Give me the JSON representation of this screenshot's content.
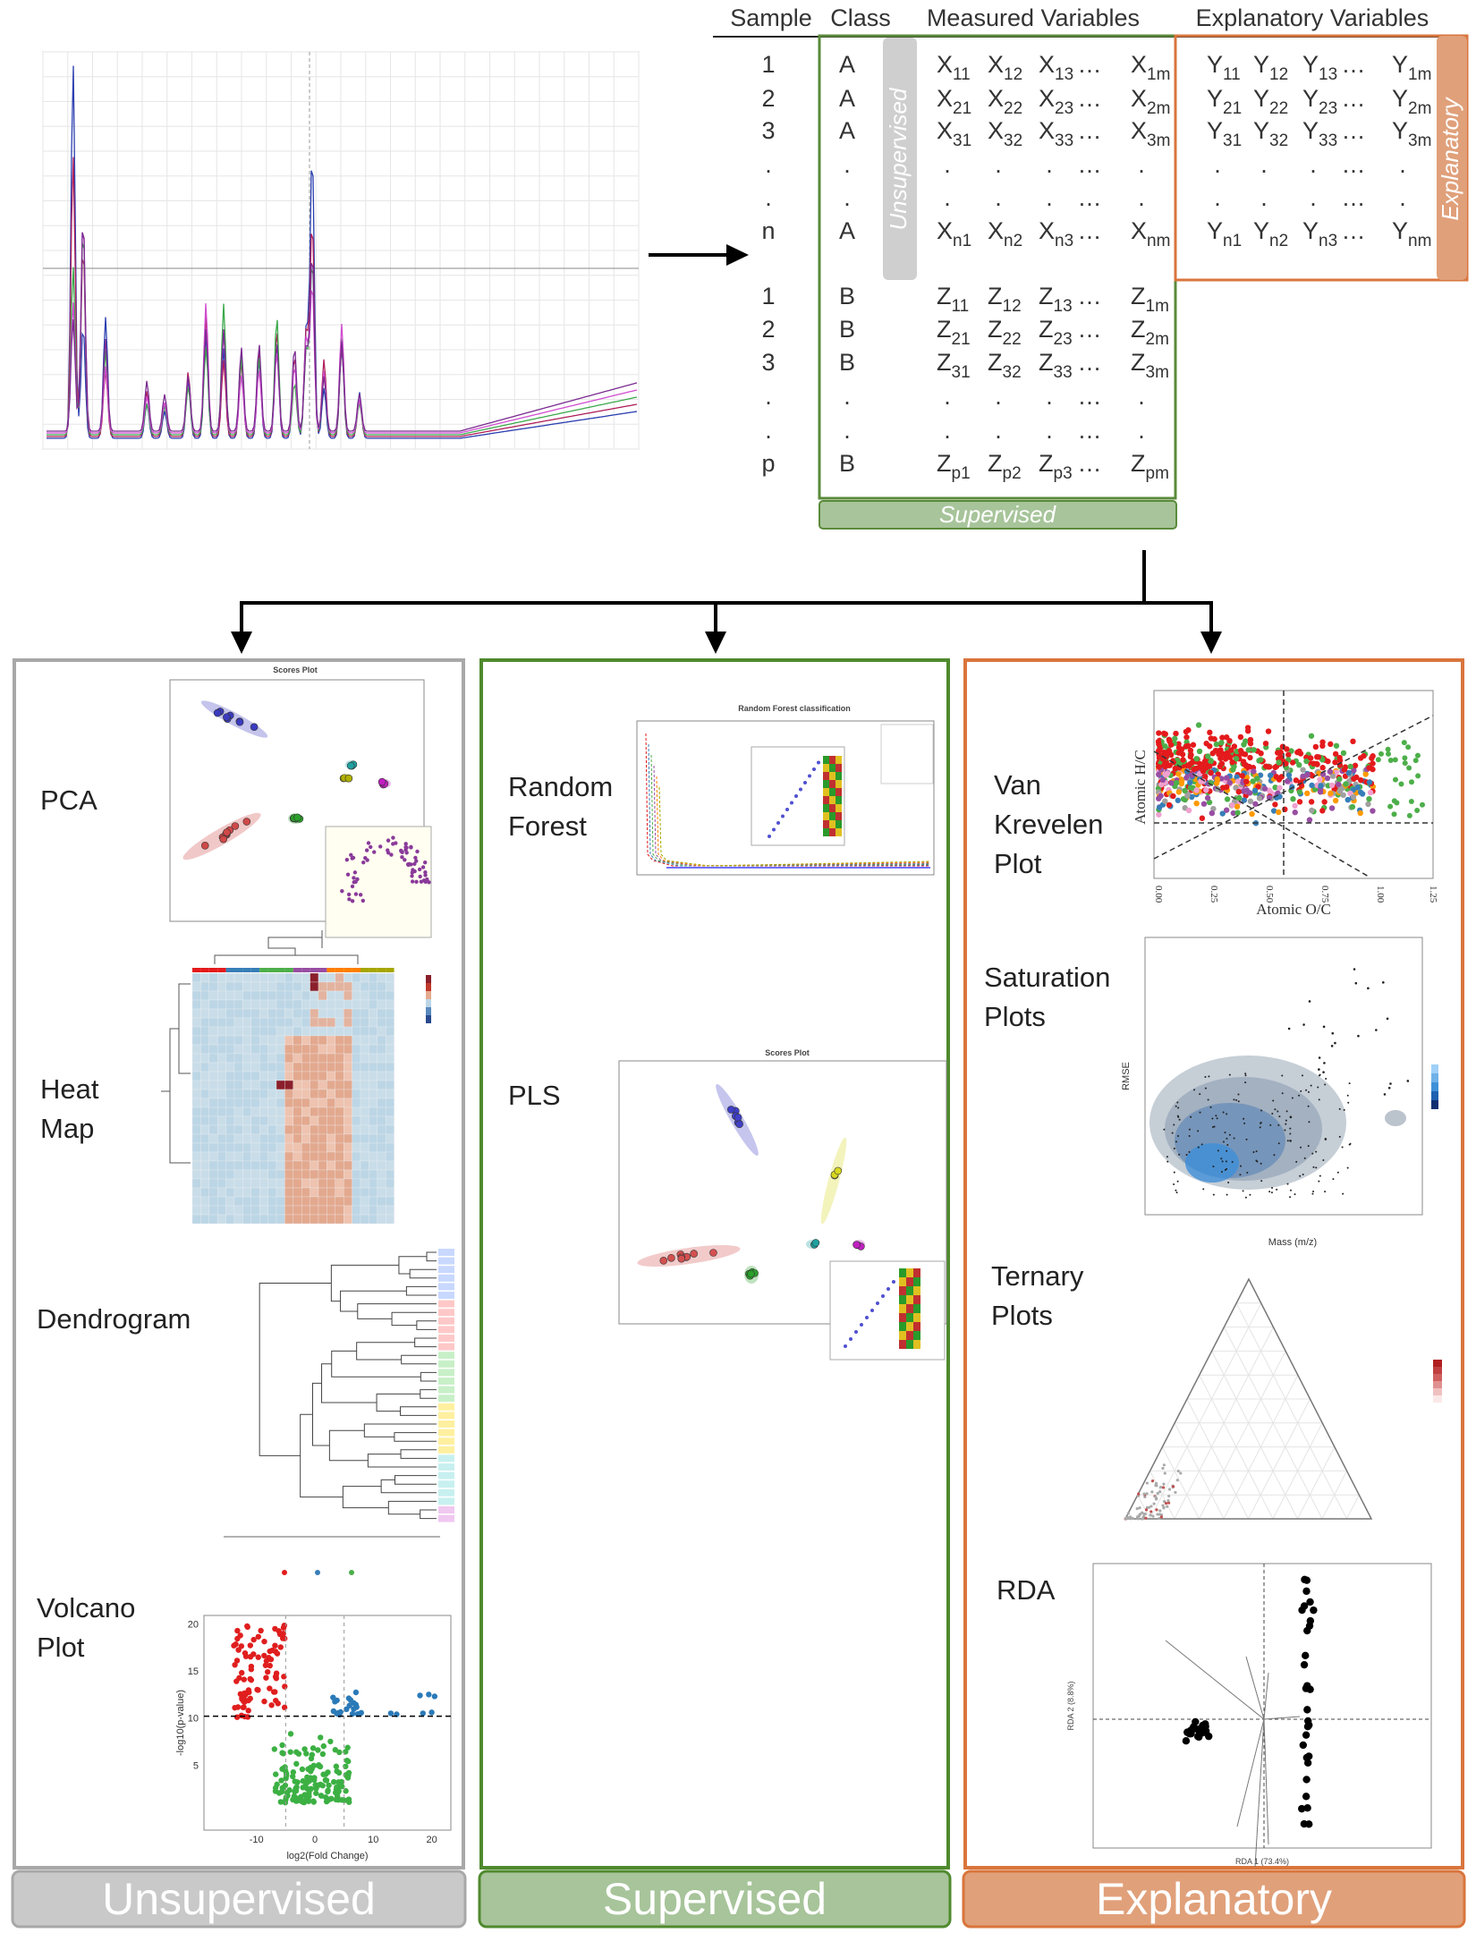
{
  "header_columns": [
    "Sample",
    "Class",
    "Measured Variables",
    "Explanatory Variables"
  ],
  "table_rows": [
    {
      "sample": "1",
      "class": "A",
      "measured": [
        {
          "base": "X",
          "sub": "11"
        },
        {
          "base": "X",
          "sub": "12"
        },
        {
          "base": "X",
          "sub": "13"
        },
        "…",
        {
          "base": "X",
          "sub": "1m"
        }
      ],
      "explanatory": [
        {
          "base": "Y",
          "sub": "11"
        },
        {
          "base": "Y",
          "sub": "12"
        },
        {
          "base": "Y",
          "sub": "13"
        },
        "…",
        {
          "base": "Y",
          "sub": "1m"
        }
      ]
    },
    {
      "sample": "2",
      "class": "A",
      "measured": [
        {
          "base": "X",
          "sub": "21"
        },
        {
          "base": "X",
          "sub": "22"
        },
        {
          "base": "X",
          "sub": "23"
        },
        "…",
        {
          "base": "X",
          "sub": "2m"
        }
      ],
      "explanatory": [
        {
          "base": "Y",
          "sub": "21"
        },
        {
          "base": "Y",
          "sub": "22"
        },
        {
          "base": "Y",
          "sub": "23"
        },
        "…",
        {
          "base": "Y",
          "sub": "2m"
        }
      ]
    },
    {
      "sample": "3",
      "class": "A",
      "measured": [
        {
          "base": "X",
          "sub": "31"
        },
        {
          "base": "X",
          "sub": "32"
        },
        {
          "base": "X",
          "sub": "33"
        },
        "…",
        {
          "base": "X",
          "sub": "3m"
        }
      ],
      "explanatory": [
        {
          "base": "Y",
          "sub": "31"
        },
        {
          "base": "Y",
          "sub": "32"
        },
        {
          "base": "Y",
          "sub": "33"
        },
        "…",
        {
          "base": "Y",
          "sub": "3m"
        }
      ]
    },
    {
      "sample": ".",
      "class": ".",
      "measured": [
        ".",
        ".",
        ".",
        "…",
        "."
      ],
      "explanatory": [
        ".",
        ".",
        ".",
        "…",
        "."
      ]
    },
    {
      "sample": ".",
      "class": ".",
      "measured": [
        ".",
        ".",
        ".",
        "…",
        "."
      ],
      "explanatory": [
        ".",
        ".",
        ".",
        "…",
        "."
      ]
    },
    {
      "sample": "n",
      "class": "A",
      "measured": [
        {
          "base": "X",
          "sub": "n1"
        },
        {
          "base": "X",
          "sub": "n2"
        },
        {
          "base": "X",
          "sub": "n3"
        },
        "…",
        {
          "base": "X",
          "sub": "nm"
        }
      ],
      "explanatory": [
        {
          "base": "Y",
          "sub": "n1"
        },
        {
          "base": "Y",
          "sub": "n2"
        },
        {
          "base": "Y",
          "sub": "n3"
        },
        "…",
        {
          "base": "Y",
          "sub": "nm"
        }
      ]
    },
    {
      "sample": "1",
      "class": "B",
      "measured": [
        {
          "base": "Z",
          "sub": "11"
        },
        {
          "base": "Z",
          "sub": "12"
        },
        {
          "base": "Z",
          "sub": "13"
        },
        "…",
        {
          "base": "Z",
          "sub": "1m"
        }
      ],
      "explanatory": []
    },
    {
      "sample": "2",
      "class": "B",
      "measured": [
        {
          "base": "Z",
          "sub": "21"
        },
        {
          "base": "Z",
          "sub": "22"
        },
        {
          "base": "Z",
          "sub": "23"
        },
        "…",
        {
          "base": "Z",
          "sub": "2m"
        }
      ],
      "explanatory": []
    },
    {
      "sample": "3",
      "class": "B",
      "measured": [
        {
          "base": "Z",
          "sub": "31"
        },
        {
          "base": "Z",
          "sub": "32"
        },
        {
          "base": "Z",
          "sub": "33"
        },
        "…",
        {
          "base": "Z",
          "sub": "3m"
        }
      ],
      "explanatory": []
    },
    {
      "sample": ".",
      "class": ".",
      "measured": [
        ".",
        ".",
        ".",
        "…",
        "."
      ],
      "explanatory": []
    },
    {
      "sample": ".",
      "class": ".",
      "measured": [
        ".",
        ".",
        ".",
        "…",
        "."
      ],
      "explanatory": []
    },
    {
      "sample": "p",
      "class": "B",
      "measured": [
        {
          "base": "Z",
          "sub": "p1"
        },
        {
          "base": "Z",
          "sub": "p2"
        },
        {
          "base": "Z",
          "sub": "p3"
        },
        "…",
        {
          "base": "Z",
          "sub": "pm"
        }
      ],
      "explanatory": []
    }
  ],
  "side_labels": {
    "unsupervised": "Unsupervised",
    "explanatory": "Explanatory",
    "supervised": "Supervised"
  },
  "panels": [
    {
      "footer": "Unsupervised",
      "methods": [
        {
          "label": [
            "PCA"
          ]
        },
        {
          "label": [
            "Heat",
            "Map"
          ]
        },
        {
          "label": [
            "Dendrogram"
          ]
        },
        {
          "label": [
            "Volcano",
            "Plot"
          ]
        }
      ]
    },
    {
      "footer": "Supervised",
      "methods": [
        {
          "label": [
            "Random",
            "Forest"
          ]
        },
        {
          "label": [
            "PLS"
          ]
        }
      ]
    },
    {
      "footer": "Explanatory",
      "methods": [
        {
          "label": [
            "Van",
            "Krevelen",
            "Plot"
          ]
        },
        {
          "label": [
            "Saturation",
            "Plots"
          ]
        },
        {
          "label": [
            "Ternary",
            "Plots"
          ]
        },
        {
          "label": [
            "RDA"
          ]
        }
      ]
    }
  ],
  "plot_texts": {
    "pca_title": "Scores Plot",
    "rf_title": "Random Forest classification",
    "pls_title": "Scores Plot",
    "volcano": {
      "x_label": "log2(Fold Change)",
      "y_label": "-log10(p-value)",
      "xticks": [
        "-10",
        "0",
        "10",
        "20"
      ],
      "yticks": [
        "20",
        "15",
        "10",
        "5"
      ]
    },
    "van_krevelen": {
      "x_label": "Atomic O/C",
      "y_label": "Atomic H/C",
      "xticks": [
        "0.00",
        "0.25",
        "0.50",
        "0.75",
        "1.00",
        "1.25"
      ]
    },
    "saturation": {
      "x_label": "Mass (m/z)",
      "y_label": "RMSE"
    },
    "rda": {
      "x_label": "RDA 1 (73.4%)",
      "y_label": "RDA 2 (8.8%)"
    }
  }
}
